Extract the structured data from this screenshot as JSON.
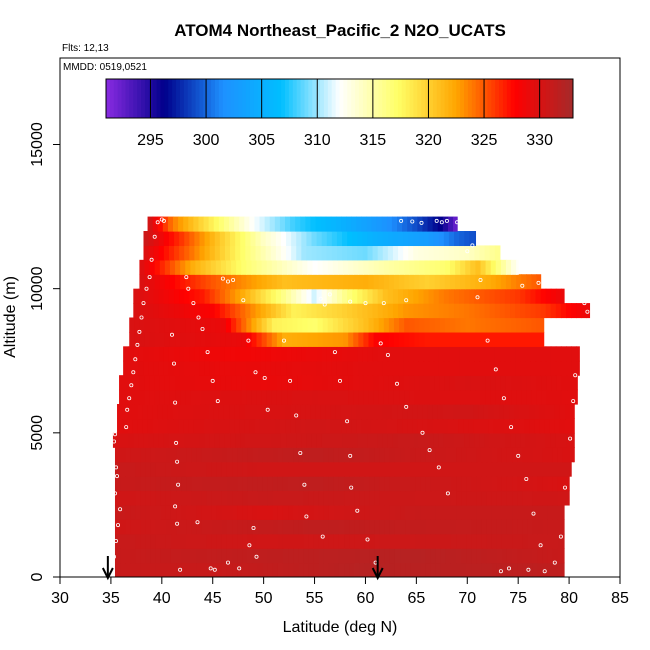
{
  "chart_data": {
    "type": "heatmap",
    "title": "ATOM4 Northeast_Pacific_2 N2O_UCATS",
    "flights_label": "Flts: 12,13",
    "dates_label": "MMDD: 0519,0521",
    "xlabel": "Latitude (deg N)",
    "ylabel": "Altitude (m)",
    "xlim": [
      30,
      85
    ],
    "ylim": [
      0,
      18000
    ],
    "x_ticks": [
      "30",
      "35",
      "40",
      "45",
      "50",
      "55",
      "60",
      "65",
      "70",
      "75",
      "80",
      "85"
    ],
    "y_ticks": [
      "0",
      "5000",
      "10000",
      "15000"
    ],
    "colorbar": {
      "range": [
        291,
        333
      ],
      "ticks": [
        "295",
        "300",
        "305",
        "310",
        "315",
        "320",
        "325",
        "330"
      ],
      "colors": [
        "#8a2be2",
        "#00008b",
        "#1e90ff",
        "#00bfff",
        "#ffffff",
        "#ffff66",
        "#ffa500",
        "#ff0000",
        "#a52a2a"
      ]
    },
    "profiles": [
      {
        "alt": 250,
        "lat_min": 35.4,
        "lat_max": 79.5,
        "values": [
          [
            35.4,
            331
          ],
          [
            45,
            331
          ],
          [
            60,
            332
          ],
          [
            79.5,
            331.5
          ]
        ]
      },
      {
        "alt": 750,
        "lat_min": 35.4,
        "lat_max": 79.5,
        "values": [
          [
            35.4,
            331
          ],
          [
            50,
            331.5
          ],
          [
            65,
            332
          ],
          [
            79.5,
            331
          ]
        ]
      },
      {
        "alt": 1250,
        "lat_min": 35.4,
        "lat_max": 79.5,
        "values": [
          [
            35.4,
            331
          ],
          [
            50,
            330.5
          ],
          [
            79.5,
            331
          ]
        ]
      },
      {
        "alt": 1750,
        "lat_min": 35.4,
        "lat_max": 79.5,
        "values": [
          [
            35.4,
            330.5
          ],
          [
            55,
            331.5
          ],
          [
            79.5,
            331
          ]
        ]
      },
      {
        "alt": 2250,
        "lat_min": 35.4,
        "lat_max": 79.5,
        "values": [
          [
            35.4,
            331
          ],
          [
            50,
            330
          ],
          [
            65,
            331
          ],
          [
            79.5,
            331
          ]
        ]
      },
      {
        "alt": 2750,
        "lat_min": 35.4,
        "lat_max": 80,
        "values": [
          [
            35.4,
            330.5
          ],
          [
            50,
            331
          ],
          [
            80,
            330.5
          ]
        ]
      },
      {
        "alt": 3250,
        "lat_min": 35.4,
        "lat_max": 80,
        "values": [
          [
            35.4,
            331
          ],
          [
            55,
            331.5
          ],
          [
            80,
            330
          ]
        ]
      },
      {
        "alt": 3750,
        "lat_min": 35.4,
        "lat_max": 80.2,
        "values": [
          [
            35.4,
            331
          ],
          [
            50,
            330.5
          ],
          [
            80.2,
            330.5
          ]
        ]
      },
      {
        "alt": 4250,
        "lat_min": 35.4,
        "lat_max": 80.5,
        "values": [
          [
            35.4,
            330.5
          ],
          [
            55,
            331.5
          ],
          [
            80.5,
            330
          ]
        ]
      },
      {
        "alt": 4750,
        "lat_min": 35.2,
        "lat_max": 80.5,
        "values": [
          [
            35.2,
            330
          ],
          [
            50,
            330.5
          ],
          [
            65,
            331
          ],
          [
            80.5,
            330
          ]
        ]
      },
      {
        "alt": 5250,
        "lat_min": 35.6,
        "lat_max": 80.5,
        "values": [
          [
            35.6,
            329.5
          ],
          [
            55,
            330.5
          ],
          [
            80.5,
            329.5
          ]
        ]
      },
      {
        "alt": 5750,
        "lat_min": 35.6,
        "lat_max": 80.5,
        "values": [
          [
            35.6,
            329.5
          ],
          [
            50,
            330
          ],
          [
            70,
            330.5
          ],
          [
            80.5,
            329.5
          ]
        ]
      },
      {
        "alt": 6250,
        "lat_min": 35.8,
        "lat_max": 80.8,
        "values": [
          [
            35.8,
            329.5
          ],
          [
            55,
            330
          ],
          [
            80.8,
            329.5
          ]
        ]
      },
      {
        "alt": 6750,
        "lat_min": 35.8,
        "lat_max": 80.8,
        "values": [
          [
            35.8,
            329.5
          ],
          [
            50,
            329
          ],
          [
            70,
            330
          ],
          [
            80.8,
            329.5
          ]
        ]
      },
      {
        "alt": 7250,
        "lat_min": 36.2,
        "lat_max": 81,
        "values": [
          [
            36.2,
            329.5
          ],
          [
            48,
            329
          ],
          [
            60,
            329.5
          ],
          [
            81,
            329.5
          ]
        ]
      },
      {
        "alt": 7750,
        "lat_min": 36.2,
        "lat_max": 81,
        "values": [
          [
            36.2,
            329.5
          ],
          [
            48,
            328.5
          ],
          [
            55,
            329
          ],
          [
            62,
            329.5
          ],
          [
            81,
            329.5
          ]
        ]
      },
      {
        "alt": 8250,
        "lat_min": 36.8,
        "lat_max": 77.5,
        "values": [
          [
            36.8,
            330
          ],
          [
            48,
            329
          ],
          [
            52,
            322
          ],
          [
            58,
            323
          ],
          [
            61,
            328
          ],
          [
            66,
            327
          ],
          [
            77.5,
            327
          ]
        ]
      },
      {
        "alt": 8750,
        "lat_min": 36.8,
        "lat_max": 77.5,
        "values": [
          [
            36.8,
            330
          ],
          [
            46,
            329
          ],
          [
            51,
            318
          ],
          [
            55,
            317
          ],
          [
            60,
            321
          ],
          [
            64,
            325
          ],
          [
            70,
            324
          ],
          [
            77.5,
            325
          ]
        ]
      },
      {
        "alt": 9250,
        "lat_min": 37.2,
        "lat_max": 82,
        "values": [
          [
            37.2,
            330
          ],
          [
            45,
            328
          ],
          [
            50,
            322
          ],
          [
            53,
            318
          ],
          [
            58,
            320
          ],
          [
            64,
            323
          ],
          [
            70,
            324
          ],
          [
            77.5,
            326
          ],
          [
            82,
            329
          ]
        ]
      },
      {
        "alt": 9750,
        "lat_min": 37.2,
        "lat_max": 79.5,
        "values": [
          [
            37.2,
            330
          ],
          [
            44,
            327
          ],
          [
            48,
            322
          ],
          [
            52,
            316
          ],
          [
            55,
            311
          ],
          [
            58,
            316
          ],
          [
            62,
            321
          ],
          [
            68,
            324
          ],
          [
            75,
            326
          ],
          [
            79.5,
            329
          ]
        ]
      },
      {
        "alt": 10250,
        "lat_min": 37.8,
        "lat_max": 77.2,
        "values": [
          [
            37.8,
            330
          ],
          [
            45,
            325
          ],
          [
            52,
            321
          ],
          [
            60,
            322
          ],
          [
            66,
            320
          ],
          [
            72,
            322
          ],
          [
            77.2,
            325
          ]
        ]
      },
      {
        "alt": 10750,
        "lat_min": 37.8,
        "lat_max": 75,
        "values": [
          [
            37.8,
            330
          ],
          [
            43,
            322
          ],
          [
            48,
            317
          ],
          [
            55,
            312
          ],
          [
            62,
            315
          ],
          [
            68,
            317
          ],
          [
            71,
            321
          ],
          [
            75,
            312
          ]
        ]
      },
      {
        "alt": 11250,
        "lat_min": 38.2,
        "lat_max": 73.2,
        "values": [
          [
            38.2,
            330
          ],
          [
            43,
            324
          ],
          [
            48,
            317
          ],
          [
            54,
            310
          ],
          [
            60,
            309
          ],
          [
            65,
            313
          ],
          [
            70,
            314
          ],
          [
            73.2,
            316
          ]
        ]
      },
      {
        "alt": 11750,
        "lat_min": 38.2,
        "lat_max": 70.8,
        "values": [
          [
            38.2,
            331
          ],
          [
            42,
            326
          ],
          [
            46,
            320
          ],
          [
            50,
            314
          ],
          [
            55,
            309
          ],
          [
            61,
            305
          ],
          [
            66,
            303
          ],
          [
            69,
            300
          ],
          [
            70.8,
            299
          ]
        ]
      },
      {
        "alt": 12250,
        "lat_min": 38.6,
        "lat_max": 69,
        "values": [
          [
            38.6,
            331
          ],
          [
            41,
            324
          ],
          [
            45,
            318
          ],
          [
            49,
            312
          ],
          [
            53,
            308
          ],
          [
            58,
            305
          ],
          [
            62,
            302
          ],
          [
            65,
            299
          ],
          [
            67.5,
            296
          ],
          [
            69,
            292
          ]
        ]
      }
    ],
    "samples": [
      [
        35.2,
        200
      ],
      [
        35.3,
        700
      ],
      [
        35.5,
        1250
      ],
      [
        35.7,
        1800
      ],
      [
        35.9,
        2350
      ],
      [
        35.4,
        2900
      ],
      [
        35.6,
        3500
      ],
      [
        35.5,
        3800
      ],
      [
        35.3,
        4700
      ],
      [
        35.4,
        4950
      ],
      [
        36.5,
        5200
      ],
      [
        36.6,
        5800
      ],
      [
        36.8,
        6200
      ],
      [
        37.0,
        6650
      ],
      [
        37.2,
        7100
      ],
      [
        37.4,
        7550
      ],
      [
        37.6,
        8050
      ],
      [
        37.8,
        8500
      ],
      [
        38.0,
        9000
      ],
      [
        38.2,
        9500
      ],
      [
        38.5,
        10000
      ],
      [
        38.8,
        10400
      ],
      [
        39.0,
        11000
      ],
      [
        39.3,
        11800
      ],
      [
        39.6,
        12300
      ],
      [
        40.0,
        12400
      ],
      [
        40.2,
        12350
      ],
      [
        41.0,
        8400
      ],
      [
        41.2,
        7400
      ],
      [
        41.3,
        6050
      ],
      [
        41.4,
        4650
      ],
      [
        41.5,
        4000
      ],
      [
        41.6,
        3200
      ],
      [
        41.3,
        2450
      ],
      [
        41.5,
        1850
      ],
      [
        41.8,
        250
      ],
      [
        42.4,
        10400
      ],
      [
        42.6,
        10000
      ],
      [
        43.1,
        9500
      ],
      [
        43.6,
        9000
      ],
      [
        44.0,
        8600
      ],
      [
        44.5,
        7800
      ],
      [
        45.0,
        6800
      ],
      [
        45.5,
        6100
      ],
      [
        46.0,
        10350
      ],
      [
        46.5,
        10250
      ],
      [
        47.0,
        10300
      ],
      [
        48.0,
        9600
      ],
      [
        48.5,
        8200
      ],
      [
        49.2,
        7100
      ],
      [
        50.1,
        6900
      ],
      [
        50.4,
        5800
      ],
      [
        49.0,
        1700
      ],
      [
        48.6,
        1100
      ],
      [
        49.3,
        700
      ],
      [
        46.5,
        500
      ],
      [
        47.6,
        300
      ],
      [
        45.2,
        250
      ],
      [
        44.8,
        300
      ],
      [
        43.5,
        1900
      ],
      [
        52.0,
        8200
      ],
      [
        52.6,
        6800
      ],
      [
        53.2,
        5600
      ],
      [
        53.6,
        4300
      ],
      [
        54.0,
        3200
      ],
      [
        54.2,
        2100
      ],
      [
        55.8,
        1400
      ],
      [
        56.5,
        9800
      ],
      [
        57.0,
        7800
      ],
      [
        57.5,
        6800
      ],
      [
        58.2,
        5400
      ],
      [
        58.5,
        4200
      ],
      [
        58.6,
        3100
      ],
      [
        59.2,
        2300
      ],
      [
        60.2,
        1300
      ],
      [
        61.0,
        500
      ],
      [
        61.5,
        8100
      ],
      [
        62.2,
        7700
      ],
      [
        63.1,
        6700
      ],
      [
        64.0,
        5900
      ],
      [
        65.6,
        5000
      ],
      [
        66.3,
        4400
      ],
      [
        67.2,
        3800
      ],
      [
        68.1,
        2900
      ],
      [
        67.0,
        12350
      ],
      [
        67.5,
        12300
      ],
      [
        68.0,
        12350
      ],
      [
        69.0,
        12300
      ],
      [
        70.0,
        11300
      ],
      [
        70.5,
        11500
      ],
      [
        71.3,
        10300
      ],
      [
        71.0,
        9700
      ],
      [
        72.0,
        8200
      ],
      [
        72.8,
        7200
      ],
      [
        73.6,
        6200
      ],
      [
        74.3,
        5200
      ],
      [
        75.0,
        4200
      ],
      [
        75.8,
        3400
      ],
      [
        76.5,
        2200
      ],
      [
        77.2,
        1100
      ],
      [
        73.3,
        200
      ],
      [
        74.1,
        300
      ],
      [
        76.0,
        250
      ],
      [
        77.6,
        200
      ],
      [
        78.6,
        500
      ],
      [
        79.2,
        1400
      ],
      [
        79.6,
        3100
      ],
      [
        80.1,
        4800
      ],
      [
        80.4,
        6100
      ],
      [
        80.6,
        7000
      ],
      [
        81.5,
        9500
      ],
      [
        81.8,
        9200
      ],
      [
        79.1,
        10100
      ],
      [
        77.0,
        10200
      ],
      [
        75.4,
        10100
      ],
      [
        64.0,
        9600
      ],
      [
        61.8,
        9500
      ],
      [
        60.0,
        9500
      ],
      [
        55.6,
        9650
      ],
      [
        56.0,
        9450
      ],
      [
        58.5,
        9550
      ],
      [
        63.5,
        12350
      ],
      [
        64.6,
        12330
      ],
      [
        65.5,
        12280
      ]
    ],
    "arrows_lat": [
      34.7,
      61.2
    ]
  }
}
